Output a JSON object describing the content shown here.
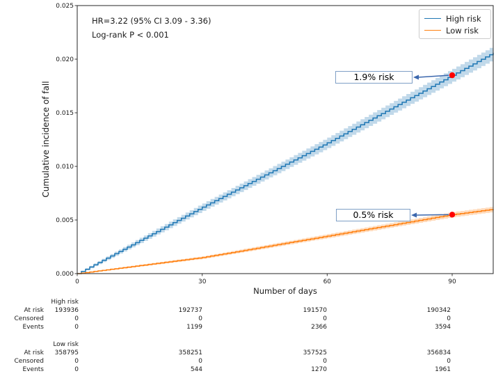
{
  "chart_data": {
    "type": "line",
    "title": "",
    "xlabel": "Number of days",
    "ylabel": "Cumulative incidence of fall",
    "xlim": [
      0,
      99.85
    ],
    "ylim": [
      0,
      0.025
    ],
    "xticks": [
      0,
      30,
      60,
      90
    ],
    "yticks": [
      0.0,
      0.005,
      0.01,
      0.015,
      0.02,
      0.025
    ],
    "grid": false,
    "legend_position": "upper right",
    "annotations": [
      "HR=3.22 (95% CI 3.09 - 3.36)",
      "Log-rank P < 0.001"
    ],
    "series": [
      {
        "name": "High risk",
        "color": "#1f77b4",
        "band_color": "#1f77b4",
        "band_opacity": 0.28,
        "band_k": 0.00441,
        "anchors_x": [
          0,
          1,
          30,
          60,
          90,
          99.85
        ],
        "anchors_y": [
          0,
          0.0002,
          0.0062,
          0.0122,
          0.0185,
          0.0206
        ]
      },
      {
        "name": "Low risk",
        "color": "#ff7f0e",
        "band_color": "#ff7f0e",
        "band_opacity": 0.28,
        "band_k": 0.00324,
        "anchors_x": [
          0,
          2,
          30,
          60,
          90,
          99.85
        ],
        "anchors_y": [
          0,
          0.0001,
          0.0015,
          0.0035,
          0.0055,
          0.006
        ]
      }
    ],
    "markers": [
      {
        "x": 90,
        "y": 0.0185,
        "color": "#ff0000",
        "label": "1.9% risk"
      },
      {
        "x": 90,
        "y": 0.0055,
        "color": "#ff0000",
        "label": "0.5% risk"
      }
    ],
    "arrow_color": "#3b67ad"
  },
  "risk_table": {
    "row_labels": [
      "At risk",
      "Censored",
      "Events"
    ],
    "time_points": [
      "0",
      "30",
      "60",
      "90"
    ],
    "groups": [
      {
        "name": "High risk",
        "rows": [
          [
            "193936",
            "192737",
            "191570",
            "190342"
          ],
          [
            "0",
            "0",
            "0",
            "0"
          ],
          [
            "0",
            "1199",
            "2366",
            "3594"
          ]
        ]
      },
      {
        "name": "Low risk",
        "rows": [
          [
            "358795",
            "358251",
            "357525",
            "356834"
          ],
          [
            "0",
            "0",
            "0",
            "0"
          ],
          [
            "0",
            "544",
            "1270",
            "1961"
          ]
        ]
      }
    ]
  }
}
